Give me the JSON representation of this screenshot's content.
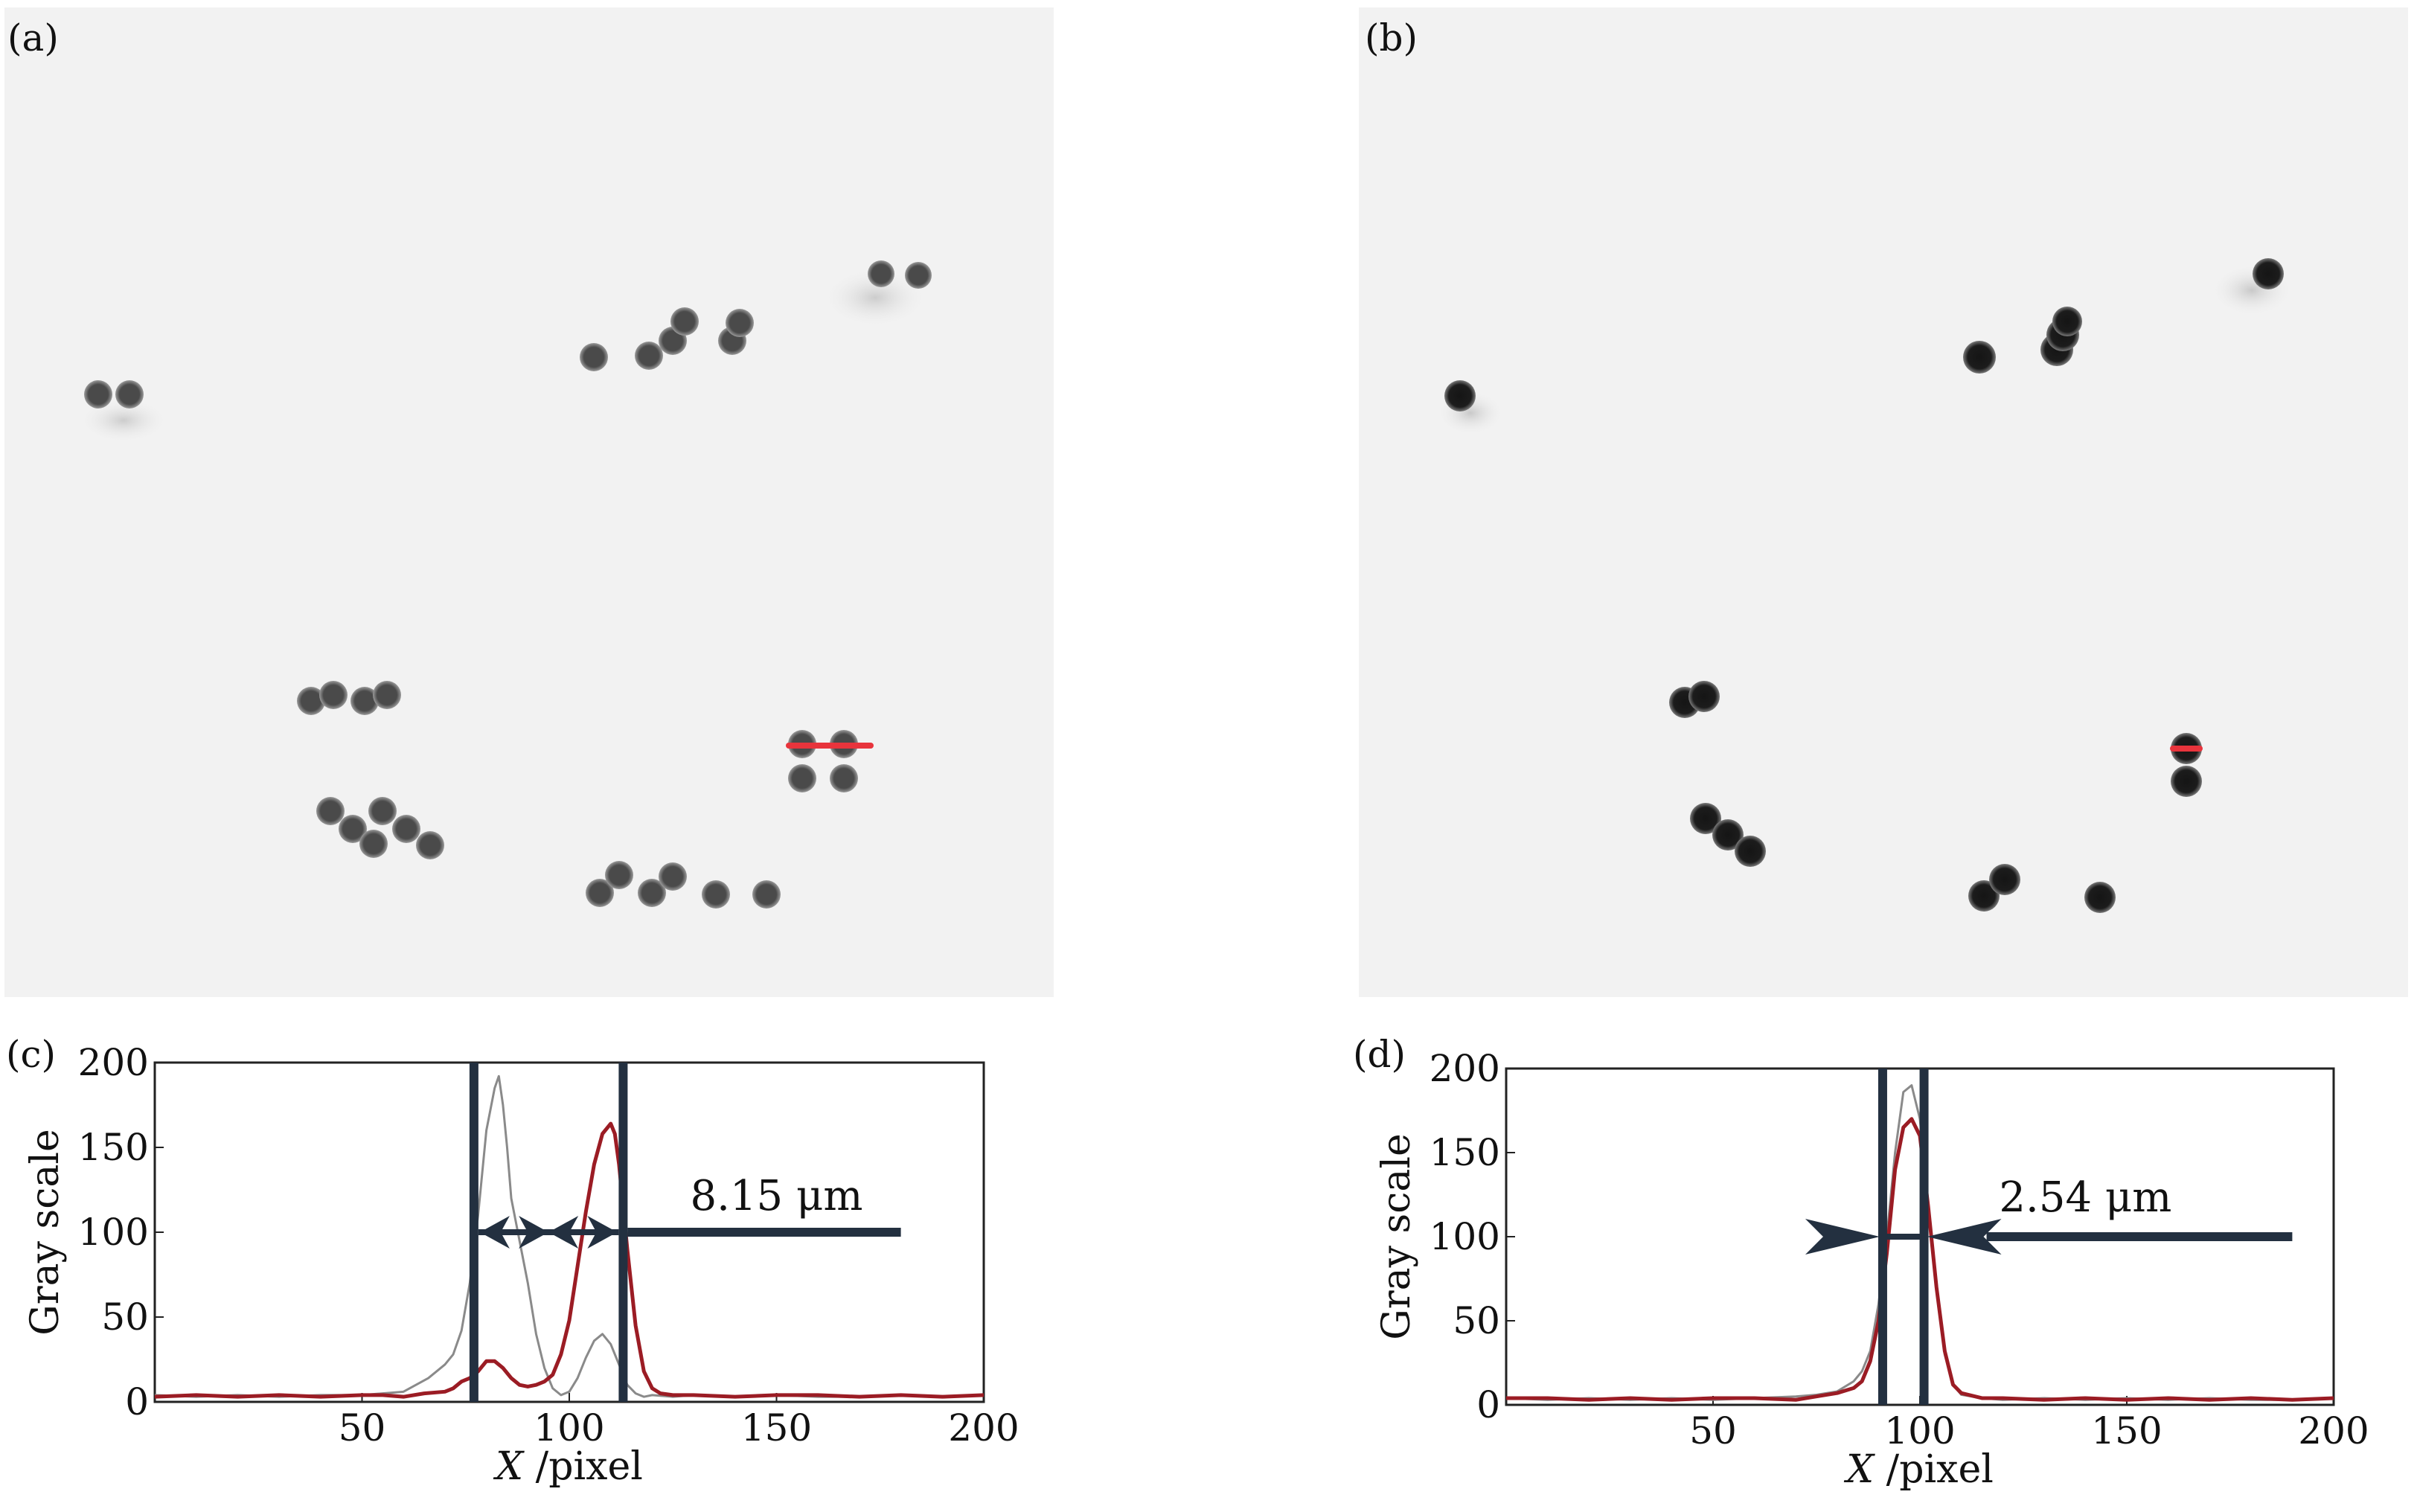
{
  "colors": {
    "bead": "#3a3a3a",
    "bead_dark": "#161616",
    "image_bg": "#f2f2f2",
    "marker_red": "#e8343c",
    "profile_red": "#9b1c24",
    "profile_gray": "#8a8a8a",
    "annotation": "#233040"
  },
  "panels": {
    "a": {
      "label": "(a)"
    },
    "b": {
      "label": "(b)"
    },
    "c": {
      "label": "(c)"
    },
    "d": {
      "label": "(d)"
    }
  },
  "chart_data": [
    {
      "type": "line",
      "panel": "(c)",
      "xlabel_var": "X",
      "xlabel_unit": " /pixel",
      "ylabel": "Gray scale",
      "xlim": [
        0,
        200
      ],
      "ylim": [
        0,
        200
      ],
      "xticks": [
        50,
        100,
        150,
        200
      ],
      "yticks": [
        0,
        50,
        100,
        150,
        200
      ],
      "series": [
        {
          "color_key": "profile_gray",
          "x": [
            0,
            10,
            20,
            30,
            40,
            50,
            55,
            60,
            63,
            66,
            68,
            70,
            72,
            74,
            76,
            78,
            80,
            82,
            83,
            84,
            85,
            86,
            88,
            90,
            92,
            94,
            96,
            98,
            100,
            102,
            104,
            106,
            108,
            110,
            112,
            114,
            116,
            118,
            120,
            125,
            130,
            140,
            150,
            160,
            170,
            180,
            190,
            200
          ],
          "y": [
            4,
            3,
            4,
            3,
            4,
            4,
            5,
            6,
            10,
            14,
            18,
            22,
            28,
            42,
            70,
            110,
            160,
            185,
            192,
            175,
            150,
            120,
            95,
            70,
            40,
            20,
            8,
            4,
            6,
            14,
            26,
            36,
            40,
            34,
            22,
            10,
            5,
            3,
            4,
            3,
            4,
            3,
            4,
            3,
            3,
            4,
            3,
            4
          ]
        },
        {
          "color_key": "profile_red",
          "x": [
            0,
            10,
            20,
            30,
            40,
            50,
            55,
            60,
            65,
            70,
            72,
            74,
            76,
            78,
            80,
            82,
            84,
            86,
            88,
            90,
            92,
            94,
            96,
            98,
            100,
            102,
            104,
            106,
            108,
            110,
            111,
            112,
            114,
            116,
            118,
            120,
            122,
            125,
            130,
            140,
            150,
            160,
            170,
            180,
            190,
            200
          ],
          "y": [
            3,
            4,
            3,
            4,
            3,
            4,
            4,
            3,
            5,
            6,
            8,
            12,
            14,
            18,
            24,
            24,
            20,
            14,
            10,
            9,
            10,
            12,
            16,
            28,
            48,
            80,
            112,
            140,
            158,
            164,
            158,
            140,
            90,
            45,
            18,
            8,
            5,
            4,
            4,
            3,
            4,
            4,
            3,
            4,
            3,
            4
          ]
        }
      ],
      "markers": [
        77,
        113
      ],
      "annotation": "8.15 μm"
    },
    {
      "type": "line",
      "panel": "(d)",
      "xlabel_var": "X",
      "xlabel_unit": " /pixel",
      "ylabel": "Gray scale",
      "xlim": [
        0,
        200
      ],
      "ylim": [
        0,
        200
      ],
      "xticks": [
        50,
        100,
        150,
        200
      ],
      "yticks": [
        0,
        50,
        100,
        150,
        200
      ],
      "series": [
        {
          "color_key": "profile_gray",
          "x": [
            0,
            10,
            20,
            30,
            40,
            50,
            60,
            70,
            75,
            80,
            84,
            86,
            88,
            90,
            92,
            94,
            96,
            98,
            100,
            102,
            104,
            106,
            108,
            110,
            115,
            120,
            130,
            140,
            150,
            160,
            170,
            180,
            190,
            200
          ],
          "y": [
            4,
            3,
            4,
            3,
            4,
            3,
            4,
            5,
            6,
            8,
            14,
            20,
            32,
            60,
            100,
            150,
            186,
            190,
            170,
            120,
            70,
            30,
            12,
            6,
            4,
            3,
            4,
            3,
            4,
            3,
            4,
            3,
            3,
            4
          ]
        },
        {
          "color_key": "profile_red",
          "x": [
            0,
            10,
            20,
            30,
            40,
            50,
            60,
            70,
            75,
            80,
            84,
            86,
            88,
            90,
            92,
            94,
            96,
            98,
            100,
            102,
            104,
            106,
            108,
            110,
            115,
            120,
            130,
            140,
            150,
            160,
            170,
            180,
            190,
            200
          ],
          "y": [
            4,
            4,
            3,
            4,
            3,
            4,
            4,
            3,
            5,
            7,
            10,
            14,
            26,
            50,
            90,
            140,
            165,
            170,
            160,
            118,
            70,
            32,
            12,
            7,
            4,
            4,
            3,
            4,
            3,
            4,
            3,
            4,
            3,
            4
          ]
        }
      ],
      "markers": [
        91,
        101
      ],
      "annotation": "2.54 μm"
    }
  ]
}
